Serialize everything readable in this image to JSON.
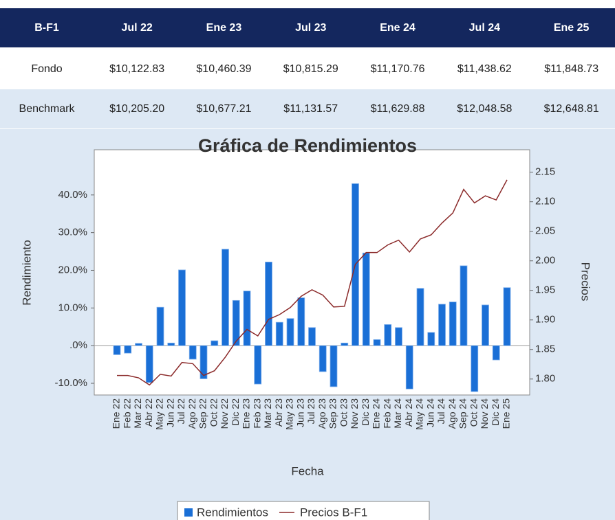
{
  "table": {
    "header": [
      "B-F1",
      "Jul 22",
      "Ene 23",
      "Jul 23",
      "Ene 24",
      "Jul 24",
      "Ene 25"
    ],
    "rows": [
      [
        "Fondo",
        "$10,122.83",
        "$10,460.39",
        "$10,815.29",
        "$11,170.76",
        "$11,438.62",
        "$11,848.73"
      ],
      [
        "Benchmark",
        "$10,205.20",
        "$10,677.21",
        "$11,131.57",
        "$11,629.88",
        "$12,048.58",
        "$12,648.81"
      ]
    ]
  },
  "chart_data": {
    "type": "bar",
    "title": "Gráfica de Rendimientos",
    "x_label": "Fecha",
    "y_label": "Rendimiento",
    "y2_label": "Precios",
    "categories": [
      "Ene 22",
      "Feb 22",
      "Mar 22",
      "Abr 22",
      "May 22",
      "Jun 22",
      "Jul 22",
      "Ago 22",
      "Sep 22",
      "Oct 22",
      "Nov 22",
      "Dic 22",
      "Ene 23",
      "Feb 23",
      "Mar 23",
      "Abr 23",
      "May 23",
      "Jun 23",
      "Jul 23",
      "Ago 23",
      "Sep 23",
      "Oct 23",
      "Nov 23",
      "Dic 23",
      "Ene 24",
      "Feb 24",
      "Mar 24",
      "Abr 24",
      "May 24",
      "Jun 24",
      "Jul 24",
      "Ago 24",
      "Sep 24",
      "Oct 24",
      "Nov 24",
      "Dic 24",
      "Ene 25"
    ],
    "series": [
      {
        "name": "Rendimientos",
        "type": "bar",
        "color": "#1a6fd6",
        "values": [
          -2.4,
          -2,
          0.6,
          -9.8,
          10.2,
          0.7,
          20.1,
          -3.6,
          -8.8,
          1.3,
          25.6,
          12,
          14.5,
          -10.2,
          22.2,
          6.2,
          7.2,
          12.7,
          4.8,
          -6.9,
          -10.9,
          0.7,
          43,
          24.6,
          1.6,
          5.6,
          4.8,
          -11.5,
          15.2,
          3.5,
          11,
          11.6,
          21.2,
          -12.2,
          10.8,
          -3.8,
          15.4
        ]
      },
      {
        "name": "Precios B-F1",
        "type": "line",
        "color": "#8b2a2a",
        "axis": "y2",
        "values": [
          1.806,
          1.806,
          1.802,
          1.79,
          1.808,
          1.805,
          1.828,
          1.826,
          1.806,
          1.814,
          1.837,
          1.864,
          1.884,
          1.873,
          1.901,
          1.909,
          1.921,
          1.94,
          1.951,
          1.942,
          1.922,
          1.923,
          1.994,
          2.014,
          2.014,
          2.027,
          2.035,
          2.015,
          2.037,
          2.044,
          2.064,
          2.081,
          2.121,
          2.098,
          2.11,
          2.103,
          2.137
        ]
      }
    ],
    "ylim": [
      -13.1,
      52
    ],
    "yticks": [
      {
        "value": -10,
        "label": "-10.0%"
      },
      {
        "value": 0,
        "label": ".0%"
      },
      {
        "value": 10,
        "label": "10.0%"
      },
      {
        "value": 20,
        "label": "20.0%"
      },
      {
        "value": 30,
        "label": "30.0%"
      },
      {
        "value": 40,
        "label": "40.0%"
      }
    ],
    "y2lim": [
      1.773,
      2.188
    ],
    "y2ticks": [
      {
        "value": 1.8,
        "label": "1.80"
      },
      1.85,
      {
        "value": 1.9,
        "label": "1.90"
      },
      1.95,
      {
        "value": 2,
        "label": "2.00"
      },
      2.05,
      {
        "value": 2.1,
        "label": "2.10"
      },
      2.15
    ],
    "legend": "bottom",
    "grid": false
  }
}
